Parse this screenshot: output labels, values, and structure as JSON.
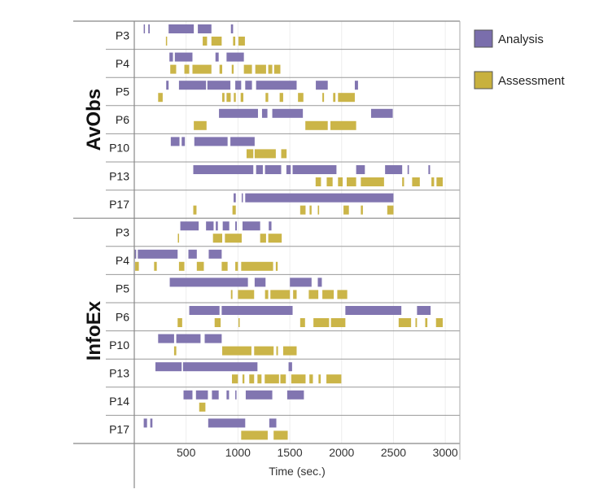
{
  "chart_data": {
    "type": "timeline",
    "xlabel": "Time (sec.)",
    "xlim": [
      0,
      3140
    ],
    "xticks": [
      500,
      1000,
      1500,
      2000,
      2500,
      3000
    ],
    "grid": "vertical",
    "legend": {
      "placement": "top-right",
      "entries": [
        {
          "name": "Analysis",
          "color": "#7a6eac"
        },
        {
          "name": "Assessment",
          "color": "#c8b13e"
        }
      ]
    },
    "groups": [
      {
        "name": "AvObs",
        "rows": [
          {
            "label": "P3",
            "analysis": [
              [
                91,
                100
              ],
              [
                135,
                149
              ],
              [
                331,
                574
              ],
              [
                613,
                744
              ],
              [
                932,
                953
              ]
            ],
            "assessment": [
              [
                305,
                313
              ],
              [
                660,
                702
              ],
              [
                744,
                843
              ],
              [
                953,
                974
              ],
              [
                1005,
                1067
              ]
            ]
          },
          {
            "label": "P4",
            "analysis": [
              [
                339,
                373
              ],
              [
                391,
                561
              ],
              [
                783,
                814
              ],
              [
                890,
                1057
              ]
            ],
            "assessment": [
              [
                347,
                404
              ],
              [
                483,
                530
              ],
              [
                561,
                744
              ],
              [
                822,
                848
              ],
              [
                940,
                958
              ],
              [
                1057,
                1135
              ],
              [
                1167,
                1271
              ],
              [
                1292,
                1331
              ],
              [
                1349,
                1409
              ]
            ]
          },
          {
            "label": "P5",
            "analysis": [
              [
                308,
                331
              ],
              [
                431,
                692
              ],
              [
                705,
                927
              ],
              [
                974,
                1031
              ],
              [
                1070,
                1135
              ],
              [
                1175,
                1566
              ],
              [
                1751,
                1866
              ],
              [
                2127,
                2158
              ]
            ],
            "assessment": [
              [
                230,
                274
              ],
              [
                848,
                870
              ],
              [
                890,
                930
              ],
              [
                960,
                979
              ],
              [
                1026,
                1052
              ],
              [
                1266,
                1292
              ],
              [
                1402,
                1436
              ],
              [
                1579,
                1631
              ],
              [
                1814,
                1830
              ],
              [
                1918,
                1940
              ],
              [
                1965,
                2127
              ]
            ]
          },
          {
            "label": "P6",
            "analysis": [
              [
                817,
                1193
              ],
              [
                1232,
                1284
              ],
              [
                1331,
                1626
              ],
              [
                2284,
                2493
              ]
            ],
            "assessment": [
              [
                574,
                697
              ],
              [
                1650,
                1866
              ],
              [
                1892,
                2140
              ]
            ]
          },
          {
            "label": "P10",
            "analysis": [
              [
                352,
                436
              ],
              [
                457,
                488
              ],
              [
                579,
                900
              ],
              [
                927,
                1161
              ]
            ],
            "assessment": [
              [
                1083,
                1148
              ],
              [
                1161,
                1365
              ],
              [
                1417,
                1469
              ]
            ]
          },
          {
            "label": "P13",
            "analysis": [
              [
                569,
                1148
              ],
              [
                1175,
                1240
              ],
              [
                1261,
                1417
              ],
              [
                1467,
                1509
              ],
              [
                1527,
                1950
              ],
              [
                2140,
                2224
              ],
              [
                2419,
                2584
              ],
              [
                2636,
                2649
              ],
              [
                2837,
                2853
              ]
            ],
            "assessment": [
              [
                1749,
                1801
              ],
              [
                1856,
                1913
              ],
              [
                1965,
                2010
              ],
              [
                2049,
                2140
              ],
              [
                2185,
                2409
              ],
              [
                2584,
                2602
              ],
              [
                2680,
                2754
              ],
              [
                2866,
                2892
              ],
              [
                2915,
                2975
              ]
            ]
          },
          {
            "label": "P17",
            "analysis": [
              [
                958,
                979
              ],
              [
                1036,
                1047
              ],
              [
                1070,
                2500
              ]
            ],
            "assessment": [
              [
                569,
                600
              ],
              [
                947,
                979
              ],
              [
                1600,
                1652
              ],
              [
                1691,
                1710
              ],
              [
                1770,
                1783
              ],
              [
                2018,
                2070
              ],
              [
                2185,
                2205
              ],
              [
                2440,
                2500
              ]
            ]
          }
        ]
      },
      {
        "name": "InfoEx",
        "rows": [
          {
            "label": "P3",
            "analysis": [
              [
                444,
                621
              ],
              [
                692,
                765
              ],
              [
                786,
                806
              ],
              [
                853,
                916
              ],
              [
                974,
                989
              ],
              [
                1044,
                1214
              ],
              [
                1297,
                1323
              ]
            ],
            "assessment": [
              [
                420,
                431
              ],
              [
                759,
                848
              ],
              [
                874,
                1036
              ],
              [
                1214,
                1271
              ],
              [
                1292,
                1422
              ]
            ]
          },
          {
            "label": "P4",
            "analysis": [
              [
                0,
                18
              ],
              [
                34,
                418
              ],
              [
                522,
                603
              ],
              [
                718,
                843
              ]
            ],
            "assessment": [
              [
                8,
                44
              ],
              [
                191,
                217
              ],
              [
                431,
                483
              ],
              [
                603,
                671
              ],
              [
                843,
                900
              ],
              [
                974,
                1000
              ],
              [
                1031,
                1339
              ],
              [
                1365,
                1383
              ]
            ]
          },
          {
            "label": "P5",
            "analysis": [
              [
                342,
                1096
              ],
              [
                1161,
                1266
              ],
              [
                1501,
                1710
              ],
              [
                1770,
                1809
              ]
            ],
            "assessment": [
              [
                932,
                947
              ],
              [
                1000,
                1156
              ],
              [
                1261,
                1292
              ],
              [
                1313,
                1501
              ],
              [
                1532,
                1566
              ],
              [
                1683,
                1775
              ],
              [
                1814,
                1924
              ],
              [
                1958,
                2054
              ]
            ]
          },
          {
            "label": "P6",
            "analysis": [
              [
                530,
                822
              ],
              [
                843,
                1527
              ],
              [
                2036,
                2576
              ],
              [
                2727,
                2858
              ]
            ],
            "assessment": [
              [
                418,
                462
              ],
              [
                775,
                833
              ],
              [
                1005,
                1013
              ],
              [
                1600,
                1647
              ],
              [
                1728,
                1879
              ],
              [
                1897,
                2036
              ],
              [
                2550,
                2670
              ],
              [
                2712,
                2727
              ],
              [
                2806,
                2827
              ],
              [
                2910,
                2975
              ]
            ]
          },
          {
            "label": "P10",
            "analysis": [
              [
                230,
                384
              ],
              [
                405,
                639
              ],
              [
                679,
                843
              ]
            ],
            "assessment": [
              [
                384,
                405
              ],
              [
                848,
                1130
              ],
              [
                1156,
                1344
              ],
              [
                1370,
                1386
              ],
              [
                1436,
                1566
              ]
            ]
          },
          {
            "label": "P13",
            "analysis": [
              [
                204,
                457
              ],
              [
                470,
                1188
              ],
              [
                1488,
                1522
              ]
            ],
            "assessment": [
              [
                942,
                1000
              ],
              [
                1044,
                1062
              ],
              [
                1109,
                1156
              ],
              [
                1188,
                1227
              ],
              [
                1258,
                1396
              ],
              [
                1409,
                1462
              ],
              [
                1514,
                1652
              ],
              [
                1689,
                1723
              ],
              [
                1777,
                1798
              ],
              [
                1853,
                1997
              ]
            ]
          },
          {
            "label": "P14",
            "analysis": [
              [
                475,
                561
              ],
              [
                595,
                710
              ],
              [
                749,
                814
              ],
              [
                890,
                914
              ],
              [
                974,
                984
              ],
              [
                1075,
                1331
              ],
              [
                1475,
                1636
              ]
            ],
            "assessment": [
              [
                626,
                686
              ]
            ]
          },
          {
            "label": "P17",
            "analysis": [
              [
                91,
                123
              ],
              [
                154,
                175
              ],
              [
                713,
                1070
              ],
              [
                1302,
                1370
              ]
            ],
            "assessment": [
              [
                1031,
                1287
              ],
              [
                1344,
                1480
              ]
            ]
          }
        ]
      }
    ]
  }
}
